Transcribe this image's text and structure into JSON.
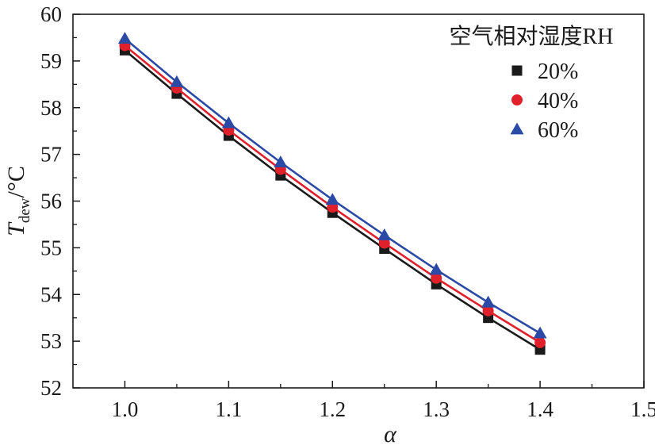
{
  "chart_data": {
    "type": "line",
    "xlabel": "α",
    "ylabel": {
      "main": "T",
      "subscript": "dew",
      "unit": "/°C"
    },
    "xlim": [
      0.95,
      1.5
    ],
    "ylim": [
      52,
      60
    ],
    "xticks": [
      1.0,
      1.1,
      1.2,
      1.3,
      1.4,
      1.5
    ],
    "xtick_labels": [
      "1.0",
      "1.1",
      "1.2",
      "1.3",
      "1.4",
      "1.5"
    ],
    "yticks": [
      52,
      53,
      54,
      55,
      56,
      57,
      58,
      59,
      60
    ],
    "ytick_labels": [
      "52",
      "53",
      "54",
      "55",
      "56",
      "57",
      "58",
      "59",
      "60"
    ],
    "x": [
      1.0,
      1.05,
      1.1,
      1.15,
      1.2,
      1.25,
      1.3,
      1.35,
      1.4
    ],
    "legend": {
      "title": "空气相对湿度RH",
      "position": "top-right"
    },
    "series": [
      {
        "name": "20%",
        "marker": "square",
        "color": "#1a1a1a",
        "values": [
          59.23,
          58.3,
          57.4,
          56.55,
          55.75,
          54.98,
          54.22,
          53.5,
          52.82
        ]
      },
      {
        "name": "40%",
        "marker": "circle",
        "color": "#e0202b",
        "values": [
          59.33,
          58.42,
          57.52,
          56.68,
          55.87,
          55.1,
          54.35,
          53.65,
          52.97
        ]
      },
      {
        "name": "60%",
        "marker": "triangle",
        "color": "#2b4aa6",
        "values": [
          59.48,
          58.55,
          57.67,
          56.83,
          56.03,
          55.27,
          54.53,
          53.83,
          53.17
        ]
      }
    ]
  }
}
